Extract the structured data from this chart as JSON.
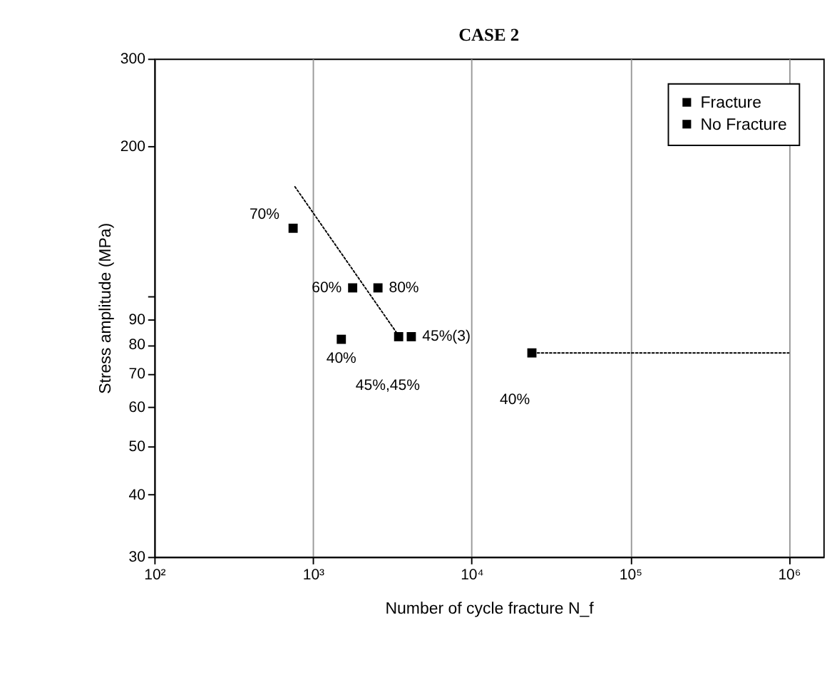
{
  "chart_data": {
    "type": "scatter",
    "title": "CASE 2",
    "xlabel": "Number of cycle fracture N_f",
    "ylabel": "Stress amplitude (MPa)",
    "log": "xy",
    "grid": "x",
    "legend": "top right",
    "marker": "square",
    "xlim": [
      100,
      1650000
    ],
    "ylim": [
      30,
      300
    ],
    "xticks": [
      {
        "value": 100,
        "label": "10²"
      },
      {
        "value": 1000,
        "label": "10³"
      },
      {
        "value": 10000,
        "label": "10⁴"
      },
      {
        "value": 100000,
        "label": "10⁵"
      },
      {
        "value": 1000000,
        "label": "10⁶"
      }
    ],
    "yticks": [
      30,
      40,
      50,
      60,
      70,
      80,
      90,
      {
        "value": 100,
        "label": null
      },
      200,
      300
    ],
    "series": [
      {
        "name": "Fracture",
        "color": "#000000",
        "x": [
          750,
          1780,
          2570,
          1510,
          3470,
          4170
        ],
        "values": [
          137,
          104,
          104,
          82,
          83,
          83
        ]
      },
      {
        "name": "No Fracture",
        "color": "#000000",
        "x": [
          24000
        ],
        "values": [
          77
        ]
      },
      {
        "type": "line",
        "color": "#000000",
        "line_style": "dotted",
        "marker": "none",
        "x": [
          770,
          3600
        ],
        "values": [
          166,
          82
        ]
      },
      {
        "type": "line",
        "color": "#000000",
        "line_style": "dotted",
        "marker": "none",
        "x": [
          26000,
          1000000
        ],
        "values": [
          77,
          77
        ]
      }
    ],
    "annotations": [
      {
        "text": "70%",
        "x": 750,
        "y": 137
      },
      {
        "text": "60%",
        "x": 1780,
        "y": 104
      },
      {
        "text": "80%",
        "x": 2570,
        "y": 104
      },
      {
        "text": "40%",
        "x": 1510,
        "y": 82
      },
      {
        "text": "45%(3)",
        "x": 4170,
        "y": 83
      },
      {
        "text": "45%,45%",
        "x": 3470,
        "y": 83
      },
      "40%"
    ]
  }
}
